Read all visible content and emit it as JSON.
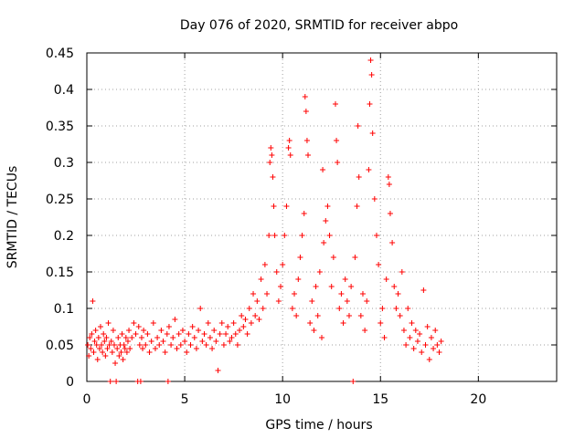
{
  "chart_data": {
    "type": "scatter",
    "title": "Day 076 of 2020, SRMTID for receiver abpo",
    "xlabel": "GPS time / hours",
    "ylabel": "SRMTID / TECUs",
    "xlim": [
      0,
      24
    ],
    "ylim": [
      0,
      0.45
    ],
    "xticks": [
      0,
      5,
      10,
      15,
      20
    ],
    "yticks": [
      0,
      0.05,
      0.1,
      0.15,
      0.2,
      0.25,
      0.3,
      0.35,
      0.4,
      0.45
    ],
    "xtick_labels": [
      "0",
      "5",
      "10",
      "15",
      "20"
    ],
    "ytick_labels": [
      "0",
      "0.05",
      "0.1",
      "0.15",
      "0.2",
      "0.25",
      "0.3",
      "0.35",
      "0.4",
      "0.45"
    ],
    "grid": true,
    "marker": "plus",
    "color": "#ff0000",
    "series": [
      {
        "name": "SRMTID",
        "points": [
          [
            0.05,
            0.05
          ],
          [
            0.1,
            0.035
          ],
          [
            0.15,
            0.06
          ],
          [
            0.2,
            0.045
          ],
          [
            0.25,
            0.065
          ],
          [
            0.3,
            0.11
          ],
          [
            0.35,
            0.04
          ],
          [
            0.4,
            0.055
          ],
          [
            0.45,
            0.07
          ],
          [
            0.5,
            0.05
          ],
          [
            0.55,
            0.03
          ],
          [
            0.6,
            0.06
          ],
          [
            0.65,
            0.045
          ],
          [
            0.7,
            0.075
          ],
          [
            0.75,
            0.05
          ],
          [
            0.8,
            0.04
          ],
          [
            0.85,
            0.065
          ],
          [
            0.9,
            0.055
          ],
          [
            0.95,
            0.035
          ],
          [
            1.0,
            0.06
          ],
          [
            1.05,
            0.045
          ],
          [
            1.1,
            0.08
          ],
          [
            1.15,
            0.05
          ],
          [
            1.2,
            0.0
          ],
          [
            1.25,
            0.055
          ],
          [
            1.3,
            0.04
          ],
          [
            1.35,
            0.07
          ],
          [
            1.4,
            0.05
          ],
          [
            1.45,
            0.025
          ],
          [
            1.5,
            0.0
          ],
          [
            1.55,
            0.045
          ],
          [
            1.6,
            0.06
          ],
          [
            1.65,
            0.035
          ],
          [
            1.7,
            0.05
          ],
          [
            1.75,
            0.04
          ],
          [
            1.8,
            0.065
          ],
          [
            1.85,
            0.03
          ],
          [
            1.9,
            0.05
          ],
          [
            1.95,
            0.045
          ],
          [
            2.0,
            0.06
          ],
          [
            2.05,
            0.04
          ],
          [
            2.1,
            0.055
          ],
          [
            2.15,
            0.07
          ],
          [
            2.2,
            0.045
          ],
          [
            2.3,
            0.06
          ],
          [
            2.4,
            0.08
          ],
          [
            2.5,
            0.065
          ],
          [
            2.6,
            0.0
          ],
          [
            2.65,
            0.075
          ],
          [
            2.7,
            0.05
          ],
          [
            2.75,
            0.0
          ],
          [
            2.8,
            0.06
          ],
          [
            2.85,
            0.045
          ],
          [
            2.9,
            0.07
          ],
          [
            3.0,
            0.05
          ],
          [
            3.1,
            0.065
          ],
          [
            3.2,
            0.04
          ],
          [
            3.3,
            0.055
          ],
          [
            3.4,
            0.08
          ],
          [
            3.5,
            0.045
          ],
          [
            3.6,
            0.06
          ],
          [
            3.7,
            0.05
          ],
          [
            3.8,
            0.07
          ],
          [
            3.9,
            0.055
          ],
          [
            4.0,
            0.04
          ],
          [
            4.1,
            0.065
          ],
          [
            4.15,
            0.0
          ],
          [
            4.2,
            0.075
          ],
          [
            4.3,
            0.05
          ],
          [
            4.4,
            0.06
          ],
          [
            4.5,
            0.085
          ],
          [
            4.6,
            0.045
          ],
          [
            4.7,
            0.065
          ],
          [
            4.8,
            0.05
          ],
          [
            4.9,
            0.07
          ],
          [
            5.0,
            0.055
          ],
          [
            5.1,
            0.04
          ],
          [
            5.2,
            0.065
          ],
          [
            5.3,
            0.05
          ],
          [
            5.4,
            0.075
          ],
          [
            5.5,
            0.06
          ],
          [
            5.6,
            0.045
          ],
          [
            5.7,
            0.07
          ],
          [
            5.8,
            0.1
          ],
          [
            5.9,
            0.055
          ],
          [
            6.0,
            0.065
          ],
          [
            6.1,
            0.05
          ],
          [
            6.2,
            0.08
          ],
          [
            6.3,
            0.06
          ],
          [
            6.4,
            0.045
          ],
          [
            6.5,
            0.07
          ],
          [
            6.6,
            0.055
          ],
          [
            6.7,
            0.015
          ],
          [
            6.8,
            0.065
          ],
          [
            6.9,
            0.08
          ],
          [
            7.0,
            0.05
          ],
          [
            7.1,
            0.065
          ],
          [
            7.2,
            0.075
          ],
          [
            7.3,
            0.055
          ],
          [
            7.4,
            0.06
          ],
          [
            7.5,
            0.08
          ],
          [
            7.6,
            0.065
          ],
          [
            7.7,
            0.05
          ],
          [
            7.8,
            0.07
          ],
          [
            7.9,
            0.09
          ],
          [
            8.0,
            0.075
          ],
          [
            8.1,
            0.085
          ],
          [
            8.2,
            0.065
          ],
          [
            8.3,
            0.1
          ],
          [
            8.4,
            0.08
          ],
          [
            8.5,
            0.12
          ],
          [
            8.6,
            0.09
          ],
          [
            8.7,
            0.11
          ],
          [
            8.8,
            0.085
          ],
          [
            8.9,
            0.14
          ],
          [
            9.0,
            0.1
          ],
          [
            9.1,
            0.16
          ],
          [
            9.2,
            0.12
          ],
          [
            9.3,
            0.2
          ],
          [
            9.35,
            0.3
          ],
          [
            9.4,
            0.32
          ],
          [
            9.45,
            0.31
          ],
          [
            9.5,
            0.28
          ],
          [
            9.55,
            0.24
          ],
          [
            9.6,
            0.2
          ],
          [
            9.7,
            0.15
          ],
          [
            9.8,
            0.11
          ],
          [
            9.9,
            0.13
          ],
          [
            10.0,
            0.16
          ],
          [
            10.1,
            0.2
          ],
          [
            10.2,
            0.24
          ],
          [
            10.3,
            0.32
          ],
          [
            10.35,
            0.33
          ],
          [
            10.4,
            0.31
          ],
          [
            10.5,
            0.1
          ],
          [
            10.6,
            0.12
          ],
          [
            10.7,
            0.09
          ],
          [
            10.8,
            0.14
          ],
          [
            10.9,
            0.17
          ],
          [
            11.0,
            0.2
          ],
          [
            11.1,
            0.23
          ],
          [
            11.15,
            0.39
          ],
          [
            11.2,
            0.37
          ],
          [
            11.25,
            0.33
          ],
          [
            11.3,
            0.31
          ],
          [
            11.4,
            0.08
          ],
          [
            11.5,
            0.11
          ],
          [
            11.6,
            0.07
          ],
          [
            11.7,
            0.13
          ],
          [
            11.8,
            0.09
          ],
          [
            11.9,
            0.15
          ],
          [
            12.0,
            0.06
          ],
          [
            12.05,
            0.29
          ],
          [
            12.1,
            0.19
          ],
          [
            12.2,
            0.22
          ],
          [
            12.3,
            0.24
          ],
          [
            12.4,
            0.2
          ],
          [
            12.5,
            0.13
          ],
          [
            12.6,
            0.17
          ],
          [
            12.7,
            0.38
          ],
          [
            12.75,
            0.33
          ],
          [
            12.8,
            0.3
          ],
          [
            12.9,
            0.1
          ],
          [
            13.0,
            0.12
          ],
          [
            13.1,
            0.08
          ],
          [
            13.2,
            0.14
          ],
          [
            13.3,
            0.11
          ],
          [
            13.4,
            0.09
          ],
          [
            13.5,
            0.13
          ],
          [
            13.6,
            0.0
          ],
          [
            13.7,
            0.17
          ],
          [
            13.8,
            0.24
          ],
          [
            13.85,
            0.35
          ],
          [
            13.9,
            0.28
          ],
          [
            14.0,
            0.09
          ],
          [
            14.1,
            0.12
          ],
          [
            14.2,
            0.07
          ],
          [
            14.3,
            0.11
          ],
          [
            14.4,
            0.29
          ],
          [
            14.45,
            0.38
          ],
          [
            14.5,
            0.44
          ],
          [
            14.55,
            0.42
          ],
          [
            14.6,
            0.34
          ],
          [
            14.7,
            0.25
          ],
          [
            14.8,
            0.2
          ],
          [
            14.9,
            0.16
          ],
          [
            15.0,
            0.08
          ],
          [
            15.1,
            0.1
          ],
          [
            15.2,
            0.06
          ],
          [
            15.3,
            0.14
          ],
          [
            15.4,
            0.28
          ],
          [
            15.45,
            0.27
          ],
          [
            15.5,
            0.23
          ],
          [
            15.6,
            0.19
          ],
          [
            15.7,
            0.13
          ],
          [
            15.8,
            0.1
          ],
          [
            15.9,
            0.12
          ],
          [
            16.0,
            0.09
          ],
          [
            16.1,
            0.15
          ],
          [
            16.2,
            0.07
          ],
          [
            16.3,
            0.05
          ],
          [
            16.4,
            0.1
          ],
          [
            16.5,
            0.06
          ],
          [
            16.6,
            0.08
          ],
          [
            16.7,
            0.045
          ],
          [
            16.8,
            0.07
          ],
          [
            16.9,
            0.055
          ],
          [
            17.0,
            0.065
          ],
          [
            17.1,
            0.04
          ],
          [
            17.2,
            0.125
          ],
          [
            17.3,
            0.05
          ],
          [
            17.4,
            0.075
          ],
          [
            17.5,
            0.03
          ],
          [
            17.6,
            0.06
          ],
          [
            17.7,
            0.045
          ],
          [
            17.8,
            0.07
          ],
          [
            17.9,
            0.05
          ],
          [
            18.0,
            0.04
          ],
          [
            18.1,
            0.055
          ]
        ]
      }
    ]
  }
}
